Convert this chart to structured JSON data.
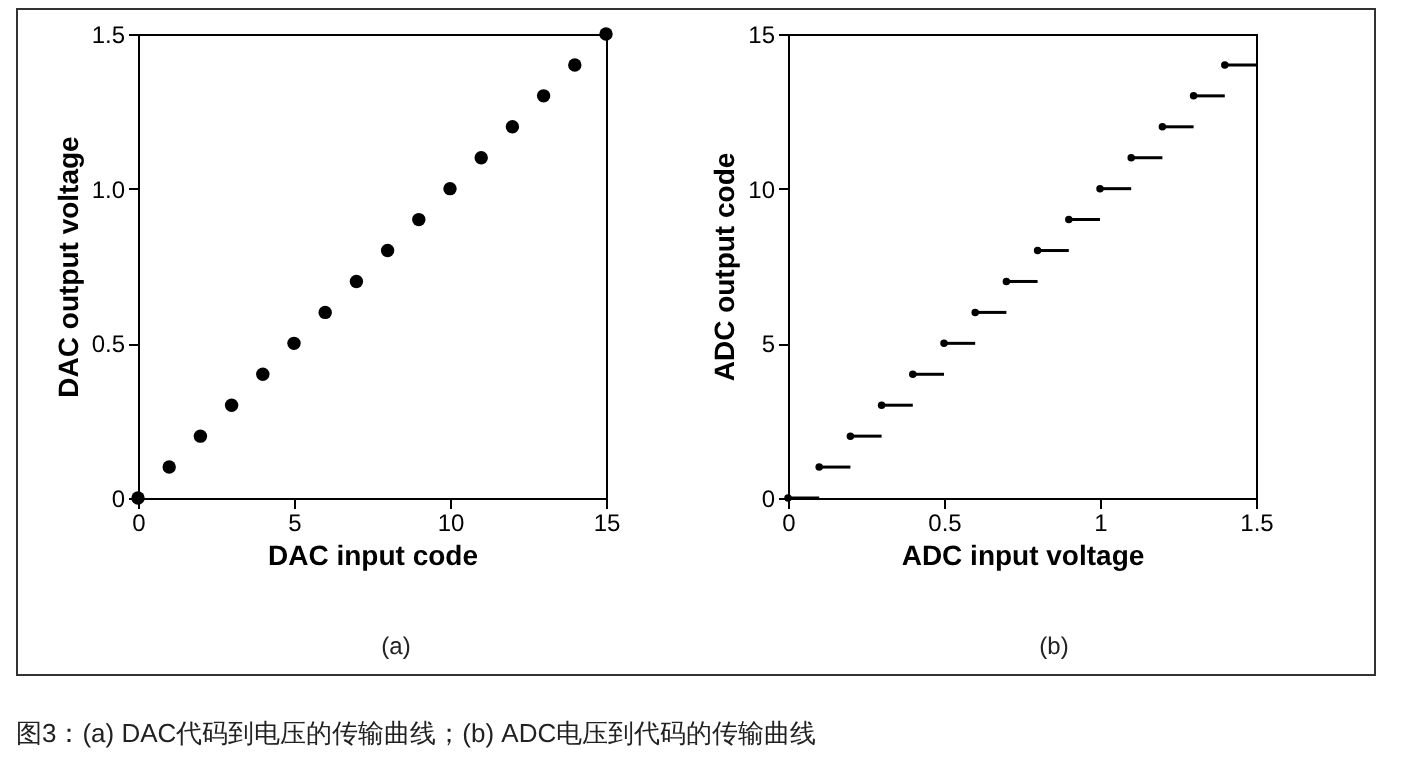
{
  "chart_data": [
    {
      "type": "scatter",
      "xlabel": "DAC input code",
      "ylabel": "DAC output voltage",
      "marker": "circle",
      "color": "#000000",
      "x": [
        0,
        1,
        2,
        3,
        4,
        5,
        6,
        7,
        8,
        9,
        10,
        11,
        12,
        13,
        14,
        15
      ],
      "values": [
        0,
        0.1,
        0.2,
        0.3,
        0.4,
        0.5,
        0.6,
        0.7,
        0.8,
        0.9,
        1.0,
        1.1,
        1.2,
        1.3,
        1.4,
        1.5
      ],
      "xlim": [
        0,
        15
      ],
      "ylim": [
        0,
        1.5
      ],
      "xticks": [
        0,
        5,
        10,
        15
      ],
      "yticks": [
        0,
        0.5,
        {
          "value": 1,
          "label": "1.0"
        },
        1.5
      ],
      "annotations": [
        "(a)",
        "图3：(a) DAC代码到电压的传输曲线；(b) ADC电压到代码的传输曲线"
      ]
    },
    {
      "type": "scatter",
      "xlabel": "ADC input voltage",
      "ylabel": "ADC output code",
      "marker": "circle",
      "color": "#000000",
      "x": [
        0,
        0.1,
        0.2,
        0.3,
        0.4,
        0.5,
        0.6,
        0.7,
        0.8,
        0.9,
        1.0,
        1.1,
        1.2,
        1.3,
        1.4
      ],
      "values": [
        0,
        1,
        2,
        3,
        4,
        5,
        6,
        7,
        8,
        9,
        10,
        11,
        12,
        13,
        14
      ],
      "xerrors": [
        [
          0,
          0.1
        ],
        [
          0.1,
          0.2
        ],
        [
          0.2,
          0.3
        ],
        [
          0.3,
          0.4
        ],
        [
          0.4,
          0.5
        ],
        [
          0.5,
          0.6
        ],
        [
          0.6,
          0.7
        ],
        [
          0.7,
          0.8
        ],
        [
          0.8,
          0.9
        ],
        [
          0.9,
          1.0
        ],
        [
          1.0,
          1.1
        ],
        [
          1.1,
          1.2
        ],
        [
          1.2,
          1.3
        ],
        [
          1.3,
          1.4
        ],
        [
          1.4,
          1.5
        ]
      ],
      "xlim": [
        0,
        1.5
      ],
      "ylim": [
        0,
        15
      ],
      "xticks": [
        0,
        0.5,
        1,
        1.5
      ],
      "yticks": [
        0,
        5,
        10,
        15
      ],
      "annotations": [
        "(b)"
      ]
    }
  ]
}
